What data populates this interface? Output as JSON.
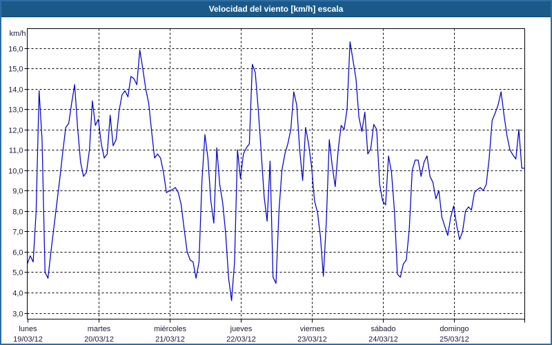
{
  "window": {
    "title": "Velocidad del viento [km/h] escala"
  },
  "colors": {
    "title_bar": "#1B5A88",
    "frame_border": "#2E6DA4",
    "line": "#0000CD",
    "grid": "#000000",
    "label_text": "#1A1A3C",
    "background": "#FFFFFF"
  },
  "chart_data": {
    "type": "line",
    "title": "Velocidad del viento [km/h] escala",
    "xlabel": "",
    "ylabel": "km/h",
    "unit_label": "km/h",
    "ylim": [
      3,
      16
    ],
    "y_tick_step": 1.0,
    "grid": true,
    "legend": null,
    "sample_interval_hours": 1,
    "y_tick_labels": [
      "16,0",
      "15,0",
      "14,0",
      "13,0",
      "12,0",
      "11,0",
      "10,0",
      "9,0",
      "8,0",
      "7,0",
      "6,0",
      "5,0",
      "4,0",
      "3,0"
    ],
    "x_labels": [
      {
        "day": "lunes",
        "date": "19/03/12"
      },
      {
        "day": "martes",
        "date": "20/03/12"
      },
      {
        "day": "miércoles",
        "date": "21/03/12"
      },
      {
        "day": "jueves",
        "date": "22/03/12"
      },
      {
        "day": "viernes",
        "date": "23/03/12"
      },
      {
        "day": "sábado",
        "date": "24/03/12"
      },
      {
        "day": "domingo",
        "date": "25/03/12"
      }
    ],
    "series": [
      {
        "name": "Velocidad del viento",
        "color": "#0000CD",
        "points_per_day": 24,
        "values": [
          5.4,
          5.8,
          5.5,
          8.0,
          13.9,
          11.5,
          5.0,
          4.7,
          6.0,
          7.2,
          8.4,
          9.6,
          10.9,
          12.1,
          12.3,
          13.3,
          14.2,
          12.1,
          10.4,
          9.7,
          9.9,
          11.0,
          13.4,
          12.2,
          12.5,
          11.3,
          10.6,
          10.8,
          12.7,
          11.2,
          11.5,
          12.9,
          13.7,
          13.9,
          13.6,
          14.6,
          14.5,
          14.2,
          15.9,
          15.0,
          14.0,
          13.3,
          11.9,
          10.6,
          10.8,
          10.6,
          9.9,
          8.9,
          9.0,
          9.05,
          9.15,
          8.9,
          8.3,
          7.1,
          6.0,
          5.6,
          5.5,
          4.7,
          5.5,
          9.5,
          11.75,
          10.6,
          8.5,
          7.4,
          11.1,
          9.3,
          8.4,
          6.9,
          4.7,
          3.6,
          5.5,
          11.0,
          9.6,
          10.8,
          11.1,
          11.3,
          15.2,
          14.8,
          13.0,
          10.9,
          8.7,
          7.5,
          10.45,
          4.75,
          4.45,
          8.0,
          10.0,
          10.8,
          11.3,
          12.0,
          13.85,
          13.2,
          11.0,
          9.5,
          12.1,
          11.3,
          10.2,
          8.5,
          7.95,
          6.75,
          4.8,
          7.5,
          11.5,
          10.2,
          9.2,
          11.0,
          12.2,
          12.0,
          13.0,
          16.3,
          15.4,
          14.5,
          12.6,
          11.9,
          12.85,
          10.8,
          11.05,
          12.25,
          12.0,
          9.3,
          8.5,
          8.3,
          10.7,
          9.9,
          8.0,
          4.9,
          4.75,
          5.4,
          5.6,
          7.1,
          10.0,
          10.5,
          10.5,
          9.7,
          10.4,
          10.7,
          9.7,
          9.4,
          8.6,
          9.0,
          7.7,
          7.25,
          6.8,
          7.7,
          8.25,
          7.3,
          6.6,
          7.0,
          8.0,
          8.2,
          8.05,
          8.9,
          9.05,
          9.15,
          9.0,
          9.3,
          10.6,
          12.45,
          12.8,
          13.2,
          13.85,
          12.7,
          11.7,
          11.0,
          10.75,
          10.55,
          12.0,
          10.1,
          10.1
        ]
      }
    ]
  }
}
